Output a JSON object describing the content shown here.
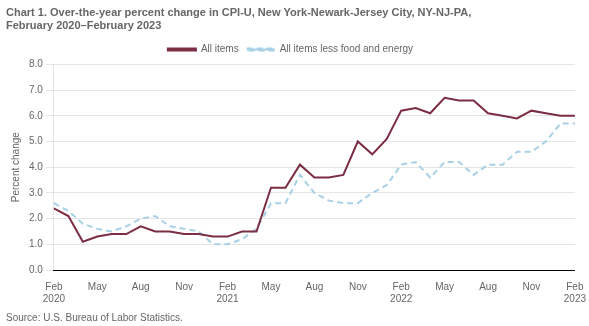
{
  "chart_data": {
    "type": "line",
    "title": "Chart 1. Over-the-year percent change in CPI-U, New York-Newark-Jersey City, NY-NJ-PA,\nFebruary 2020–February 2023",
    "ylabel": "Percent change",
    "source": "Source: U.S. Bureau of Labor Statistics.",
    "categories": [
      "Feb\n2020",
      null,
      null,
      "May",
      null,
      null,
      "Aug",
      null,
      null,
      "Nov",
      null,
      null,
      "Feb\n2021",
      null,
      null,
      "May",
      null,
      null,
      "Aug",
      null,
      null,
      "Nov",
      null,
      null,
      "Feb\n2022",
      null,
      null,
      "May",
      null,
      null,
      "Aug",
      null,
      null,
      "Nov",
      null,
      null,
      "Feb\n2023"
    ],
    "series": [
      {
        "name": "All items",
        "color": "#7B2D42",
        "line_style": "solid",
        "values": [
          2.4,
          2.1,
          1.1,
          1.3,
          1.4,
          1.4,
          1.7,
          1.5,
          1.5,
          1.4,
          1.4,
          1.3,
          1.3,
          1.5,
          1.5,
          3.2,
          3.2,
          4.1,
          3.6,
          3.6,
          3.7,
          5.0,
          4.5,
          5.1,
          6.2,
          6.3,
          6.1,
          6.7,
          6.6,
          6.6,
          6.1,
          6.0,
          5.9,
          6.2,
          6.1,
          6.0,
          6.0
        ]
      },
      {
        "name": "All items less food and energy",
        "color": "#A8D0E6",
        "line_style": "dashed",
        "values": [
          2.6,
          2.3,
          1.8,
          1.6,
          1.5,
          1.7,
          2.0,
          2.1,
          1.7,
          1.6,
          1.5,
          1.0,
          1.0,
          1.2,
          1.6,
          2.6,
          2.6,
          3.7,
          3.0,
          2.7,
          2.6,
          2.6,
          3.0,
          3.3,
          4.1,
          4.2,
          3.6,
          4.2,
          4.2,
          3.7,
          4.1,
          4.1,
          4.6,
          4.6,
          5.0,
          5.7,
          5.7
        ]
      }
    ],
    "ylim": [
      0.0,
      8.0
    ],
    "yticks": [
      {
        "value": 0,
        "label": "0.0"
      },
      {
        "value": 1,
        "label": "1.0"
      },
      {
        "value": 2,
        "label": "2.0"
      },
      {
        "value": 3,
        "label": "3.0"
      },
      {
        "value": 4,
        "label": "4.0"
      },
      {
        "value": 5,
        "label": "5.0"
      },
      {
        "value": 6,
        "label": "6.0"
      },
      {
        "value": 7,
        "label": "7.0"
      },
      {
        "value": 8,
        "label": "8.0"
      }
    ],
    "grid": "y",
    "legend": "top"
  }
}
